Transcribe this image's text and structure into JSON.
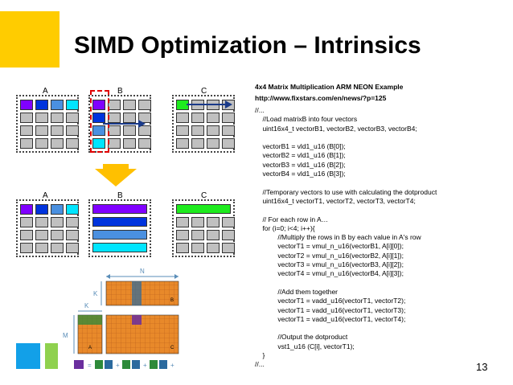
{
  "title": "SIMD Optimization – Intrinsics",
  "labels": {
    "a_top": "A",
    "b_top": "B",
    "c_top": "C",
    "a_bottom": "A",
    "b_bottom": "B",
    "c_bottom": "C"
  },
  "code_header": {
    "line1": "4x4 Matrix Multiplication ARM NEON Example",
    "line2": "http://www.fixstars.com/en/news/?p=125"
  },
  "code_lines": [
    "//...",
    "    //Load matrixB into four vectors",
    "    uint16x4_t vectorB1, vectorB2, vectorB3, vectorB4;",
    "",
    "    vectorB1 = vld1_u16 (B[0]);",
    "    vectorB2 = vld1_u16 (B[1]);",
    "    vectorB3 = vld1_u16 (B[2]);",
    "    vectorB4 = vld1_u16 (B[3]);",
    "",
    "    //Temporary vectors to use with calculating the dotproduct",
    "    uint16x4_t vectorT1, vectorT2, vectorT3, vectorT4;",
    "",
    "    // For each row in A…",
    "    for (i=0; i<4; i++){",
    "            //Multiply the rows in B by each value in A's row",
    "            vectorT1 = vmul_n_u16(vectorB1, A[i][0]);",
    "            vectorT2 = vmul_n_u16(vectorB2, A[i][1]);",
    "            vectorT3 = vmul_n_u16(vectorB3, A[i][2]);",
    "            vectorT4 = vmul_n_u16(vectorB4, A[i][3]);",
    "",
    "            //Add them together",
    "            vectorT1 = vadd_u16(vectorT1, vectorT2);",
    "            vectorT1 = vadd_u16(vectorT1, vectorT3);",
    "            vectorT1 = vadd_u16(vectorT1, vectorT4);",
    "",
    "            //Output the dotproduct",
    "            vst1_u16 (C[i], vectorT1);",
    "    }",
    "//..."
  ],
  "figure_labels": {
    "n": "N",
    "k_top": "K",
    "k_left": "K",
    "m": "M",
    "a": "A",
    "b": "B",
    "c": "C",
    "eq": "=",
    "plus1": "+",
    "plus2": "+",
    "plus3": "+"
  },
  "page_number": "13",
  "colors": {
    "yellow": "#FFCC00",
    "blue": "#12A0E8",
    "green": "#8FD14F",
    "red": "#E00000",
    "purple": "#8000FF",
    "dark_blue": "#0033DD",
    "light_blue": "#4A90E0",
    "cyan": "#00E5FF",
    "lime": "#1EEB1E",
    "orange": "#E8892A"
  }
}
